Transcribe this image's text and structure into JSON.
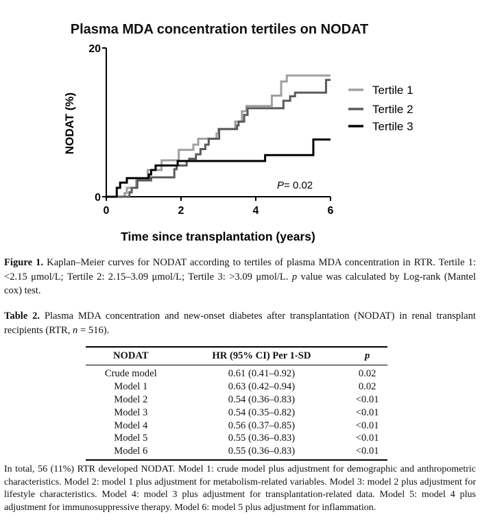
{
  "chart_data": {
    "type": "line",
    "step": true,
    "title": "Plasma MDA concentration tertiles on NODAT",
    "xlabel": "Time since transplantation (years)",
    "ylabel": "NODAT (%)",
    "xlim": [
      0,
      6
    ],
    "ylim": [
      0,
      20
    ],
    "xticks": [
      "0",
      "2",
      "4",
      "6"
    ],
    "yticks": [
      "0",
      "20"
    ],
    "grid": false,
    "legend_position": "right",
    "annotation": {
      "p_label": "P",
      "p_value": "= 0.02"
    },
    "series": [
      {
        "name": "Tertile 1",
        "color": "#a0a0a0",
        "points": [
          [
            0,
            0
          ],
          [
            0.49,
            0.5
          ],
          [
            0.55,
            1.2
          ],
          [
            0.8,
            2.2
          ],
          [
            1.11,
            3.6
          ],
          [
            1.48,
            4.9
          ],
          [
            1.94,
            6.3
          ],
          [
            2.33,
            7.0
          ],
          [
            2.46,
            7.8
          ],
          [
            2.95,
            8.5
          ],
          [
            3.0,
            9.1
          ],
          [
            3.45,
            10.1
          ],
          [
            3.63,
            11.5
          ],
          [
            3.75,
            12.2
          ],
          [
            4.43,
            13.6
          ],
          [
            4.68,
            15.5
          ],
          [
            4.83,
            16.3
          ],
          [
            6,
            16.3
          ]
        ]
      },
      {
        "name": "Tertile 2",
        "color": "#5a5a5a",
        "points": [
          [
            0,
            0
          ],
          [
            0.62,
            0.6
          ],
          [
            0.68,
            1.2
          ],
          [
            0.83,
            2.2
          ],
          [
            1.2,
            2.6
          ],
          [
            1.82,
            3.7
          ],
          [
            1.88,
            4.2
          ],
          [
            2.15,
            4.8
          ],
          [
            2.22,
            5.1
          ],
          [
            2.4,
            5.7
          ],
          [
            2.52,
            6.4
          ],
          [
            2.65,
            7.0
          ],
          [
            2.74,
            7.8
          ],
          [
            3.02,
            9.1
          ],
          [
            3.5,
            9.6
          ],
          [
            3.54,
            10.1
          ],
          [
            3.69,
            11.0
          ],
          [
            3.78,
            11.9
          ],
          [
            4.74,
            12.9
          ],
          [
            4.92,
            13.5
          ],
          [
            5.05,
            14.0
          ],
          [
            5.88,
            15.7
          ],
          [
            6,
            15.7
          ]
        ]
      },
      {
        "name": "Tertile 3",
        "color": "#000000",
        "points": [
          [
            0,
            0
          ],
          [
            0.28,
            1.2
          ],
          [
            0.37,
            1.9
          ],
          [
            0.55,
            2.5
          ],
          [
            1.14,
            3.0
          ],
          [
            1.2,
            3.6
          ],
          [
            1.32,
            4.2
          ],
          [
            1.91,
            4.8
          ],
          [
            4.25,
            5.6
          ],
          [
            5.54,
            7.7
          ],
          [
            6,
            7.7
          ]
        ]
      }
    ]
  },
  "figure_caption": {
    "label": "Figure 1.",
    "text": " Kaplan–Meier curves for NODAT according to tertiles of plasma MDA concentration in RTR. Tertile 1: <2.15 μmol/L; Tertile 2: 2.15–3.09 μmol/L; Tertile 3: >3.09 μmol/L. ",
    "p_italic": "p",
    "text_end": " value was calculated by Log-rank (Mantel cox) test."
  },
  "table_caption": {
    "label": "Table 2.",
    "text": " Plasma MDA concentration and new-onset diabetes after transplantation (NODAT) in renal transplant recipients (RTR, ",
    "n_italic": "n",
    "text_end": " = 516)."
  },
  "table": {
    "headers": [
      "NODAT",
      "HR (95% CI) Per 1-SD",
      "p"
    ],
    "rows": [
      [
        "Crude model",
        "0.61 (0.41–0.92)",
        "0.02"
      ],
      [
        "Model 1",
        "0.63 (0.42–0.94)",
        "0.02"
      ],
      [
        "Model 2",
        "0.54 (0.36–0.83)",
        "<0.01"
      ],
      [
        "Model 3",
        "0.54 (0.35–0.82)",
        "<0.01"
      ],
      [
        "Model 4",
        "0.56 (0.37–0.85)",
        "<0.01"
      ],
      [
        "Model 5",
        "0.55 (0.36–0.83)",
        "<0.01"
      ],
      [
        "Model 6",
        "0.55 (0.36–0.83)",
        "<0.01"
      ]
    ]
  },
  "footnote": "In total, 56 (11%) RTR developed NODAT. Model 1: crude model plus adjustment for demographic and anthropometric characteristics. Model 2: model 1 plus adjustment for metabolism-related variables. Model 3: model 2 plus adjustment for lifestyle characteristics. Model 4: model 3 plus adjustment for transplantation-related data. Model 5: model 4 plus adjustment for immunosuppressive therapy. Model 6: model 5 plus adjustment for inflammation."
}
